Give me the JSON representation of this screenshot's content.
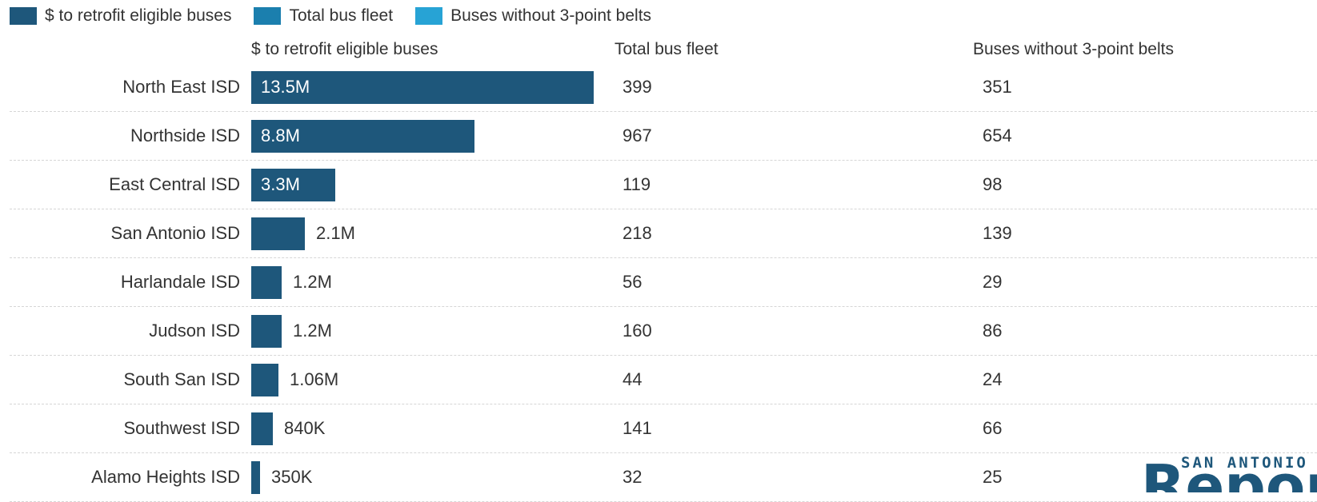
{
  "chart_data": {
    "type": "table",
    "title": "",
    "legend_position": "top-left",
    "colors": {
      "bar": "#1e577b",
      "total_fleet": "#1b7fae",
      "without_belts": "#27a3d5",
      "label_inside": "#ffffff",
      "label_outside": "#333333"
    },
    "legend": [
      {
        "label": "$ to retrofit eligible buses",
        "color": "#1e577b"
      },
      {
        "label": "Total bus fleet",
        "color": "#1b7fae"
      },
      {
        "label": "Buses without 3-point belts",
        "color": "#27a3d5"
      }
    ],
    "columns": [
      "$ to retrofit eligible buses",
      "Total bus fleet",
      "Buses without 3-point belts"
    ],
    "categories": [
      "North East ISD",
      "Northside ISD",
      "East Central ISD",
      "San Antonio ISD",
      "Harlandale ISD",
      "Judson ISD",
      "South San ISD",
      "Southwest ISD",
      "Alamo Heights ISD"
    ],
    "retrofit_values": [
      13500000,
      8800000,
      3300000,
      2100000,
      1200000,
      1200000,
      1060000,
      840000,
      350000
    ],
    "retrofit_labels": [
      "13.5M",
      "8.8M",
      "3.3M",
      "2.1M",
      "1.2M",
      "1.2M",
      "1.06M",
      "840K",
      "350K"
    ],
    "total_bus_fleet": [
      "399",
      "967",
      "119",
      "218",
      "56",
      "160",
      "44",
      "141",
      "32"
    ],
    "buses_without_belts": [
      "351",
      "654",
      "98",
      "139",
      "29",
      "86",
      "24",
      "66",
      "25"
    ],
    "xlim": [
      0,
      13500000
    ]
  },
  "logo": {
    "line1": "SAN ANTONIO",
    "line2": "Report"
  }
}
